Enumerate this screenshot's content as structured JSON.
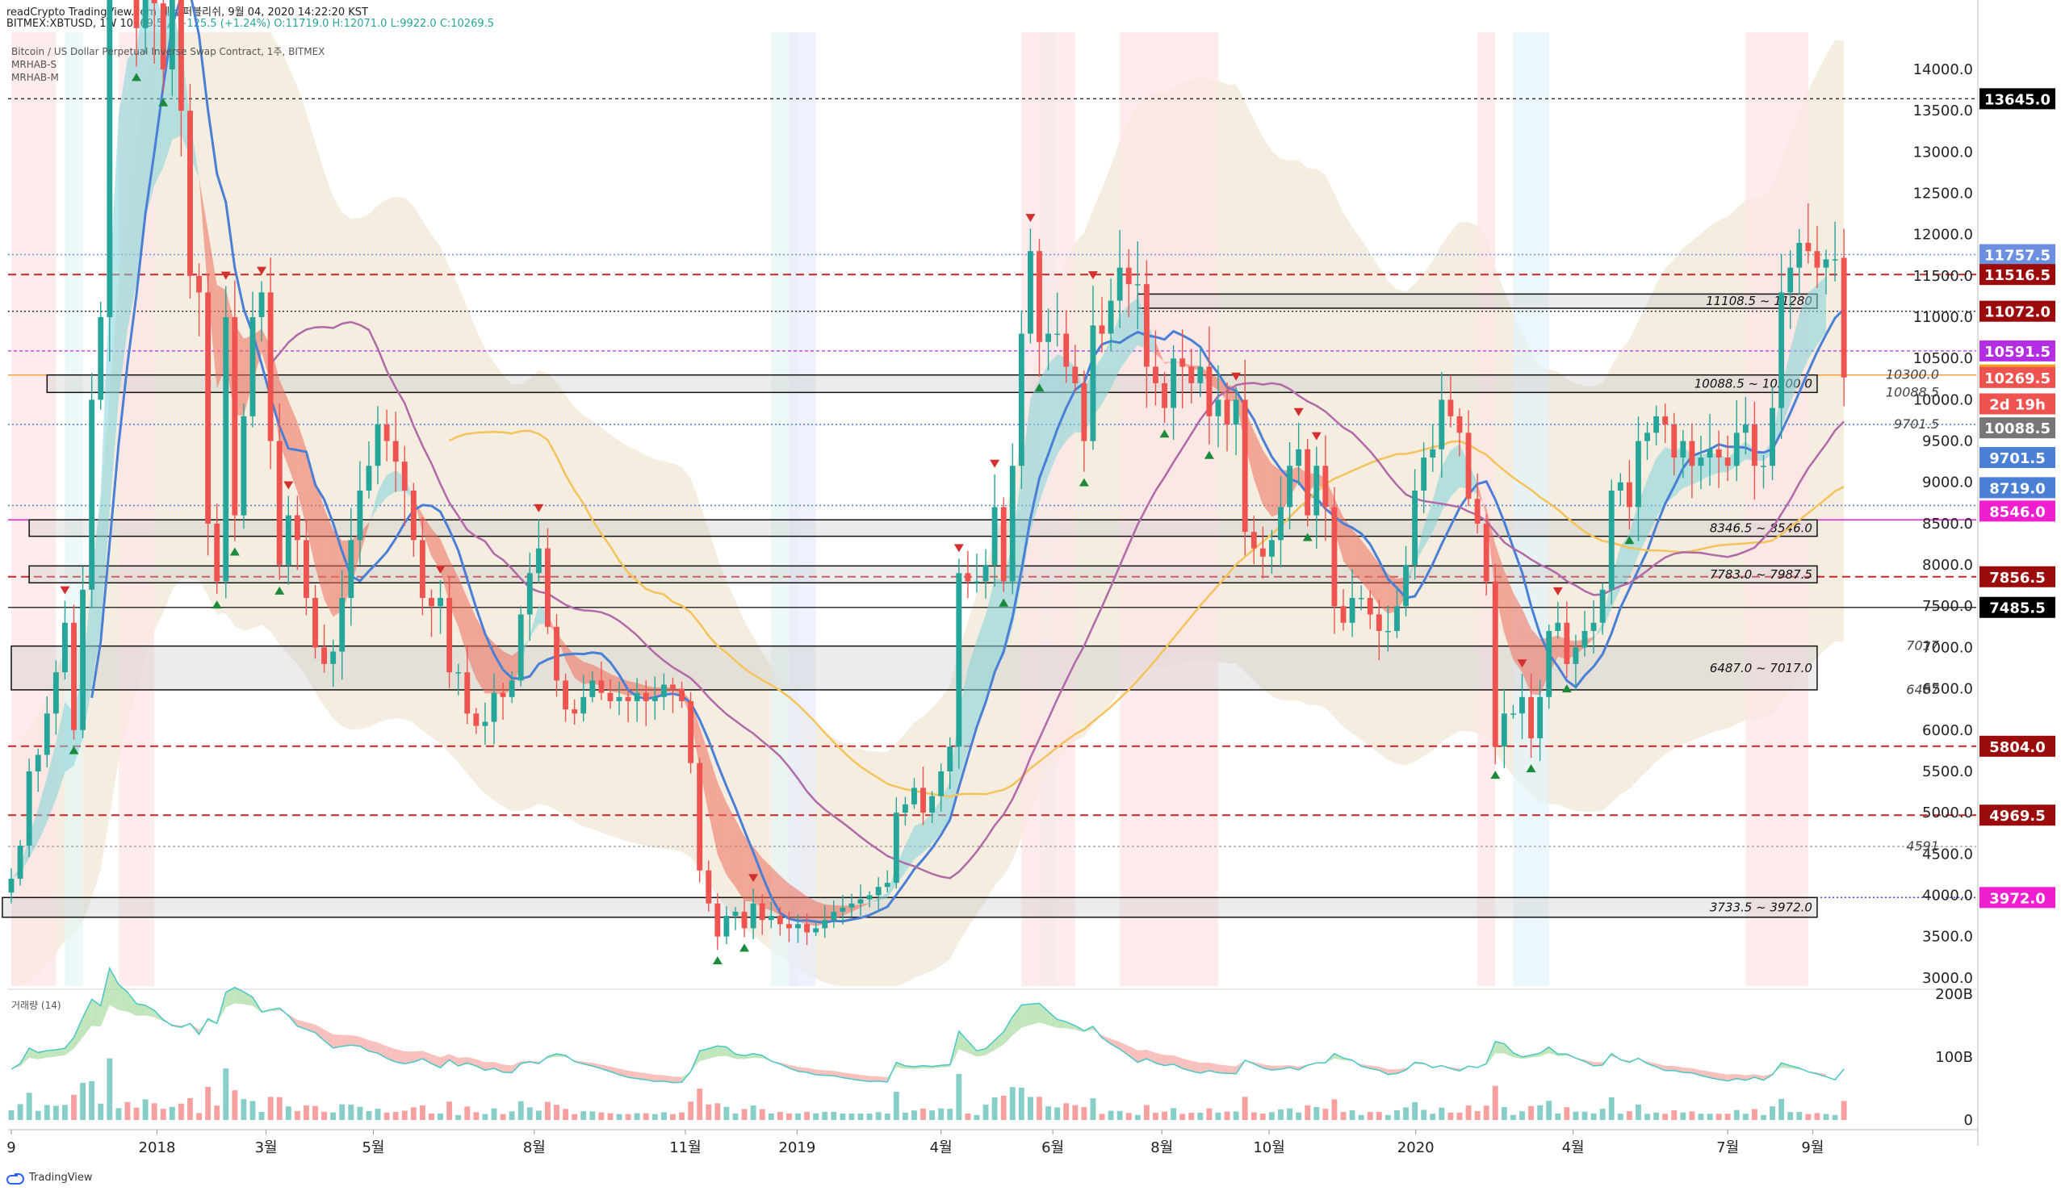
{
  "header": {
    "source_line": "readCrypto TradingView.com 에서 퍼블리쉬, 9월 04, 2020 14:22:20 KST",
    "symbol": "BITMEX:XBTUSD, 1W",
    "last": "10269.5",
    "change_arrow": "▲",
    "change": "+125.5 (+1.24%)",
    "ohlc": "O:11719.0 H:12071.0 L:9922.0 C:10269.5"
  },
  "legend": {
    "title": "Bitcoin / US Dollar Perpetual Inverse Swap Contract, 1주, BITMEX",
    "ind1": "MRHAB-S",
    "ind2": "MRHAB-M",
    "volume": "거래량 (14)"
  },
  "footer": {
    "brand": "TradingView"
  },
  "colors": {
    "up": "#26a69a",
    "down": "#ef5350",
    "ma_blue": "#4a7fd6",
    "ma_yellow": "#f4c35a",
    "ma_purple": "#b06aa8",
    "cloud": "#f3ead9",
    "red_band": "#ef6b5a",
    "cyan_band": "#7fd4da",
    "sky_band": "#a9c4e6"
  },
  "chart_data": {
    "type": "candlestick",
    "y_axis": {
      "range": [
        2900,
        14450
      ],
      "ticks": [
        "3000.0",
        "3500.0",
        "4000.0",
        "4500.0",
        "5000.0",
        "5500.0",
        "6000.0",
        "6500.0",
        "7000.0",
        "7500.0",
        "8000.0",
        "8500.0",
        "9000.0",
        "9500.0",
        "10000.0",
        "10500.0",
        "11000.0",
        "11500.0",
        "12000.0",
        "12500.0",
        "13000.0",
        "13500.0",
        "14000.0"
      ]
    },
    "x_axis": {
      "labels": [
        "9",
        "2018",
        "3월",
        "5월",
        "8월",
        "11월",
        "2019",
        "4월",
        "6월",
        "8월",
        "10월",
        "2020",
        "4월",
        "7월",
        "9월"
      ],
      "label_weeks": [
        0,
        16.3,
        28.5,
        40.5,
        58.5,
        75.4,
        87.9,
        104.0,
        116.5,
        128.7,
        140.7,
        157.1,
        174.7,
        192.0,
        201.5
      ]
    },
    "price_markers": [
      {
        "label": "13645.0",
        "value": 13645,
        "color": "#000000"
      },
      {
        "label": "11757.5",
        "value": 11757.5,
        "color": "#6c8fe0"
      },
      {
        "label": "11516.5",
        "value": 11516.5,
        "color": "#9b0b0b"
      },
      {
        "label": "11072.0",
        "value": 11072,
        "color": "#9b0b0b"
      },
      {
        "label": "10591.5",
        "value": 10591.5,
        "color": "#b32de3"
      },
      {
        "label": "10300.0",
        "value": 10300,
        "color": "#f7961e"
      },
      {
        "label": "10269.5",
        "value": 10269.5,
        "color": "#ef5350"
      },
      {
        "label": "2d 19h",
        "value": 9950,
        "color": "#ef5350"
      },
      {
        "label": "10088.5",
        "value": 9660,
        "color": "#777777"
      },
      {
        "label": "9701.5",
        "value": 9300,
        "color": "#4a7fd6"
      },
      {
        "label": "8719.0",
        "value": 8935,
        "color": "#4a7fd6"
      },
      {
        "label": "8546.0",
        "value": 8652,
        "color": "#ef1fcf"
      },
      {
        "label": "7856.5",
        "value": 7856.5,
        "color": "#9b0b0b"
      },
      {
        "label": "7485.5",
        "value": 7485.5,
        "color": "#000000"
      },
      {
        "label": "5804.0",
        "value": 5804,
        "color": "#9b0b0b"
      },
      {
        "label": "4969.5",
        "value": 4969.5,
        "color": "#9b0b0b"
      },
      {
        "label": "3972.0",
        "value": 3972,
        "color": "#ef1fcf"
      }
    ],
    "axis_notes": [
      {
        "label": "10300.0",
        "value": 10300
      },
      {
        "label": "10088.5",
        "value": 10088.5
      },
      {
        "label": "9701.5",
        "value": 9701.5
      },
      {
        "label": "7017",
        "value": 7017
      },
      {
        "label": "6487",
        "value": 6487
      },
      {
        "label": "4591",
        "value": 4591
      }
    ],
    "h_lines": [
      {
        "value": 13645,
        "color": "#333333",
        "dash": "4,4"
      },
      {
        "value": 11757.5,
        "color": "#6c8fe0",
        "dash": "2,3"
      },
      {
        "value": 11516.5,
        "color": "#c62828",
        "dash": "10,6"
      },
      {
        "value": 11072,
        "color": "#333333",
        "dash": "2,3"
      },
      {
        "value": 10591.5,
        "color": "#c44ee6",
        "dash": "4,3"
      },
      {
        "value": 10300,
        "color": "#f7a23c",
        "dash": ""
      },
      {
        "value": 9701.5,
        "color": "#4a7fd6",
        "dash": "2,3"
      },
      {
        "value": 8719,
        "color": "#4a7fd6",
        "dash": "2,3"
      },
      {
        "value": 8546,
        "color": "#ef1fcf",
        "dash": ""
      },
      {
        "value": 7856.5,
        "color": "#c62828",
        "dash": "10,6"
      },
      {
        "value": 7485.5,
        "color": "#333333",
        "dash": ""
      },
      {
        "value": 5804,
        "color": "#c62828",
        "dash": "10,6"
      },
      {
        "value": 4969.5,
        "color": "#c62828",
        "dash": "10,6"
      },
      {
        "value": 4591,
        "color": "#aaaaaa",
        "dash": "3,3"
      },
      {
        "value": 3972,
        "color": "#3b48d8",
        "dash": "2,3"
      }
    ],
    "zones": [
      {
        "label": "11108.5 ~ 11280",
        "low": 11108.5,
        "high": 11280,
        "from_week": 126,
        "to_week": 202
      },
      {
        "label": "10088.5 ~ 10300.0",
        "low": 10088.5,
        "high": 10300,
        "from_week": 4,
        "to_week": 202
      },
      {
        "label": "8346.5 ~ 8546.0",
        "low": 8346.5,
        "high": 8546,
        "from_week": 2,
        "to_week": 202
      },
      {
        "label": "7783.0 ~ 7987.5",
        "low": 7783,
        "high": 7987.5,
        "from_week": 2,
        "to_week": 202
      },
      {
        "label": "6487.0 ~ 7017.0",
        "low": 6487,
        "high": 7017,
        "from_week": 0,
        "to_week": 202
      },
      {
        "label": "3733.5 ~ 3972.0",
        "low": 3733.5,
        "high": 3972,
        "from_week": -1,
        "to_week": 202
      }
    ],
    "volume_axis": {
      "ticks": [
        "0",
        "100B",
        "200B"
      ],
      "max": 200
    },
    "weekly_closes": [
      4200,
      4600,
      5500,
      5700,
      6200,
      6700,
      7300,
      6000,
      7700,
      10000,
      11000,
      16500,
      17500,
      15500,
      14500,
      16500,
      14800,
      14000,
      15000,
      13500,
      11500,
      11300,
      8500,
      7800,
      11000,
      8600,
      9800,
      11000,
      11300,
      9500,
      8000,
      8600,
      8300,
      7600,
      7000,
      6800,
      6950,
      7600,
      8300,
      8900,
      9200,
      9700,
      9500,
      9250,
      8900,
      8300,
      7600,
      7500,
      7600,
      6700,
      6700,
      6200,
      6050,
      6100,
      6450,
      6400,
      6600,
      7400,
      7900,
      8200,
      7250,
      6600,
      6250,
      6200,
      6400,
      6600,
      6450,
      6350,
      6400,
      6350,
      6450,
      6350,
      6400,
      6550,
      6500,
      6350,
      5600,
      4300,
      3900,
      3500,
      3750,
      3800,
      3600,
      3900,
      3700,
      3750,
      3650,
      3600,
      3650,
      3550,
      3600,
      3700,
      3800,
      3850,
      3900,
      3950,
      4000,
      4100,
      4150,
      5000,
      5100,
      5300,
      5000,
      5200,
      5500,
      5800,
      7900,
      7800,
      7800,
      8000,
      8700,
      7800,
      9200,
      10800,
      11800,
      10700,
      10800,
      10800,
      10400,
      10200,
      9500,
      10900,
      10800,
      11200,
      11600,
      11400,
      11400,
      10400,
      10200,
      9900,
      10500,
      10400,
      10200,
      10400,
      9800,
      10000,
      9700,
      10000,
      8400,
      8200,
      8100,
      8300,
      8700,
      9200,
      9400,
      8600,
      9200,
      8700,
      7500,
      7300,
      7600,
      7600,
      7400,
      7200,
      7200,
      7500,
      8000,
      8900,
      9300,
      9400,
      10000,
      9800,
      9600,
      8800,
      8500,
      7800,
      5800,
      6200,
      6200,
      6400,
      5900,
      6400,
      7200,
      7300,
      6800,
      7000,
      7200,
      7300,
      7700,
      8900,
      9000,
      8700,
      9500,
      9600,
      9800,
      9700,
      9300,
      9500,
      9200,
      9300,
      9400,
      9300,
      9200,
      9600,
      9700,
      9200,
      9200,
      9900,
      11300,
      11600,
      11900,
      11800,
      11600,
      11700,
      11700,
      10269.5
    ],
    "last_candle": {
      "open": 11719,
      "high": 12071,
      "low": 9922,
      "close": 10269.5
    }
  }
}
